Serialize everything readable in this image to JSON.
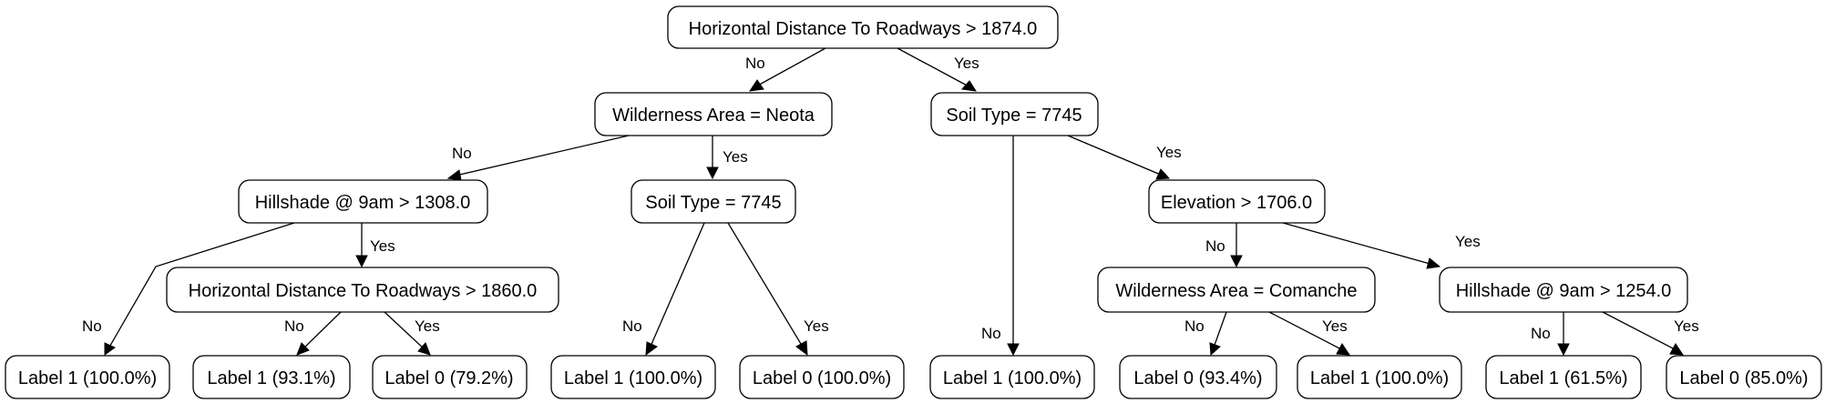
{
  "nodes": {
    "root": "Horizontal Distance To Roadways > 1874.0",
    "wilderness_neota": "Wilderness Area = Neota",
    "soil_right": "Soil Type = 7745",
    "hillshade_1308": "Hillshade @ 9am > 1308.0",
    "soil_mid": "Soil Type = 7745",
    "elevation": "Elevation > 1706.0",
    "hdr_1860": "Horizontal Distance To Roadways > 1860.0",
    "wilderness_comanche": "Wilderness Area = Comanche",
    "hillshade_1254": "Hillshade @ 9am > 1254.0",
    "leaf1": "Label 1 (100.0%)",
    "leaf2": "Label 1 (93.1%)",
    "leaf3": "Label 0 (79.2%)",
    "leaf4": "Label 1 (100.0%)",
    "leaf5": "Label 0 (100.0%)",
    "leaf6": "Label 1 (100.0%)",
    "leaf7": "Label 0 (93.4%)",
    "leaf8": "Label 1 (100.0%)",
    "leaf9": "Label 1 (61.5%)",
    "leaf10": "Label 0 (85.0%)"
  },
  "edges": {
    "root_no": "No",
    "root_yes": "Yes",
    "neota_no": "No",
    "neota_yes": "Yes",
    "soilright_no": "No",
    "soilright_yes": "Yes",
    "hs1308_no": "No",
    "hs1308_yes": "Yes",
    "soilmid_no": "No",
    "soilmid_yes": "Yes",
    "elev_no": "No",
    "elev_yes": "Yes",
    "hdr1860_no": "No",
    "hdr1860_yes": "Yes",
    "comanche_no": "No",
    "comanche_yes": "Yes",
    "hs1254_no": "No",
    "hs1254_yes": "Yes"
  }
}
